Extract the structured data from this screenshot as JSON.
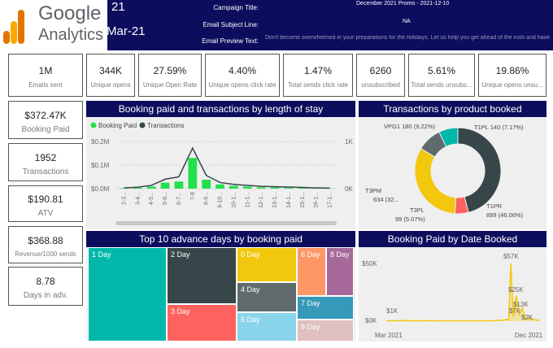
{
  "header": {
    "logo_word1": "Google",
    "logo_word2": "Analytics",
    "date_frag1": "21",
    "date_frag2": "Mar-21",
    "campaign_title_label": "Campaign Title:",
    "campaign_title_value": "December 2021 Promo - 2021-12-10",
    "subject_label": "Email Subject Line:",
    "subject_value": "NA",
    "preview_label": "Email Preview Text:",
    "preview_value": "Don't become overwhelmed in your preparations for the holidays. Let us help you get ahead of the rush and have your vacation ready"
  },
  "kpis_top": [
    {
      "value": "1M",
      "label": "Emails sent"
    },
    {
      "value": "344K",
      "label": "Unique opens"
    },
    {
      "value": "27.59%",
      "label": "Unique Open Rate"
    },
    {
      "value": "4.40%",
      "label": "Unique opens click rate"
    },
    {
      "value": "1.47%",
      "label": "Total sends click rate"
    },
    {
      "value": "6260",
      "label": "unsubscribed"
    },
    {
      "value": "5.61%",
      "label": "Total sends unsubs..."
    },
    {
      "value": "19.86%",
      "label": "Unique opens unsu..."
    }
  ],
  "kpis_side": [
    {
      "value": "$372.47K",
      "label": "Booking Paid"
    },
    {
      "value": "1952",
      "label": "Transactions"
    },
    {
      "value": "$190.81",
      "label": "ATV"
    },
    {
      "value": "$368.88",
      "label": "Revenue/1000 sends"
    },
    {
      "value": "8.78",
      "label": "Days in adv."
    }
  ],
  "colors": {
    "navy": "#0d0d5e",
    "green": "#22e04b",
    "dark": "#374649",
    "yellow": "#f2c80f",
    "teal": "#01b8aa",
    "red": "#fd625e",
    "grey": "#5f6b6d",
    "lightblue": "#8ad4eb",
    "orange": "#fe9666",
    "purple": "#a66999",
    "steel": "#3599b8",
    "pink": "#dfbfbf"
  },
  "chart_data": [
    {
      "type": "bar",
      "title": "Booking paid and transactions by length of stay",
      "legend": [
        "Booking Paid",
        "Transactions"
      ],
      "categories": [
        "2-3...",
        "3-4...",
        "4-5...",
        "5-6...",
        "6-7...",
        "7-8",
        "8-9...",
        "9-10...",
        "10-1...",
        "11-1...",
        "12-1...",
        "13-1...",
        "14-1...",
        "15-1...",
        "16-1...",
        "17-1..."
      ],
      "series": [
        {
          "name": "Booking Paid",
          "values": [
            2000,
            4000,
            9000,
            25000,
            30000,
            130000,
            38000,
            18000,
            12000,
            9000,
            6000,
            5000,
            4000,
            3000,
            2000,
            1000
          ]
        },
        {
          "name": "Transactions",
          "values": [
            15,
            30,
            70,
            200,
            250,
            860,
            280,
            130,
            90,
            70,
            50,
            40,
            35,
            25,
            15,
            10
          ]
        }
      ],
      "y_left_ticks": [
        "$0.0M",
        "$0.1M",
        "$0.2M"
      ],
      "y_left_max": 200000,
      "y_right_ticks": [
        "0K",
        "1K"
      ],
      "y_right_max": 1000
    },
    {
      "type": "pie",
      "title": "Transactions by product booked",
      "slices": [
        {
          "label": "T1PR",
          "value": 899,
          "percent": "46.06%",
          "color": "#374649"
        },
        {
          "label": "T3PL",
          "value": 99,
          "percent": "5.07%",
          "color": "#fd625e"
        },
        {
          "label": "T3PM",
          "value": 634,
          "percent": "32...",
          "color": "#f2c80f"
        },
        {
          "label": "VPG1",
          "value": 180,
          "percent": "9.22%",
          "color": "#5f6b6d"
        },
        {
          "label": "T1PL",
          "value": 140,
          "percent": "7.17%",
          "color": "#01b8aa"
        }
      ],
      "labels": {
        "t1pr": "T1PR",
        "t1pr_val": "899 (46.06%)",
        "t3pl": "T3PL",
        "t3pl_val": "99 (5.07%)",
        "t3pm": "T3PM",
        "t3pm_val": "634 (32...",
        "vpg1": "VPG1 180 (9.22%)",
        "t1pl": "T1PL 140 (7.17%)"
      }
    },
    {
      "type": "heatmap",
      "title": "Top 10 advance days by booking paid",
      "cells": [
        {
          "label": "1 Day",
          "color": "#01b8aa"
        },
        {
          "label": "2 Day",
          "color": "#374649"
        },
        {
          "label": "3 Day",
          "color": "#fd625e"
        },
        {
          "label": "0 Day",
          "color": "#f2c80f"
        },
        {
          "label": "4 Day",
          "color": "#5f6b6d"
        },
        {
          "label": "5 Day",
          "color": "#8ad4eb"
        },
        {
          "label": "6 Day",
          "color": "#fe9666"
        },
        {
          "label": "8 Day",
          "color": "#a66999"
        },
        {
          "label": "7 Day",
          "color": "#3599b8"
        },
        {
          "label": "9 Day",
          "color": "#dfbfbf"
        }
      ]
    },
    {
      "type": "line",
      "title": "Booking Paid by Date Booked",
      "x_labels": [
        "Mar 2021",
        "Dec 2021"
      ],
      "y_ticks": [
        "$0K",
        "$50K"
      ],
      "y_max": 60000,
      "points": [
        {
          "x": 0.0,
          "y": 300
        },
        {
          "x": 0.1,
          "y": 600
        },
        {
          "x": 0.2,
          "y": 400
        },
        {
          "x": 0.3,
          "y": 500
        },
        {
          "x": 0.4,
          "y": 300
        },
        {
          "x": 0.5,
          "y": 400
        },
        {
          "x": 0.6,
          "y": 300
        },
        {
          "x": 0.7,
          "y": 500
        },
        {
          "x": 0.76,
          "y": 1000
        },
        {
          "x": 0.8,
          "y": 2000
        },
        {
          "x": 0.815,
          "y": 57000
        },
        {
          "x": 0.83,
          "y": 5000
        },
        {
          "x": 0.85,
          "y": 25000
        },
        {
          "x": 0.87,
          "y": 7000
        },
        {
          "x": 0.89,
          "y": 13000
        },
        {
          "x": 0.91,
          "y": 2000
        },
        {
          "x": 0.93,
          "y": 3000
        },
        {
          "x": 1.0,
          "y": 500
        }
      ],
      "annotations": {
        "a1k": "$1K",
        "a57k": "$57K",
        "a25k": "$25K",
        "a13k": "$13K",
        "a7k": "$7K",
        "a2k": "$2K"
      }
    }
  ]
}
